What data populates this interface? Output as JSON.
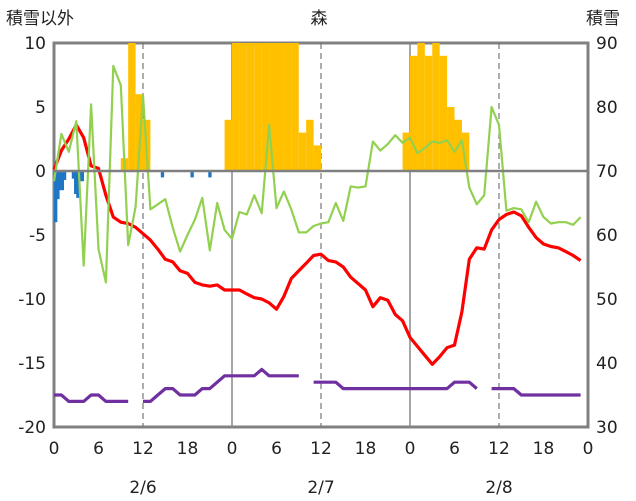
{
  "chart_data": {
    "type": "line",
    "title": "森",
    "left_axis_label": "積雪以外",
    "right_axis_label": "積雪",
    "y_left_range": [
      -20,
      10
    ],
    "y_left_ticks": [
      "10",
      "5",
      "0",
      "-5",
      "-10",
      "-15",
      "-20"
    ],
    "y_right_range": [
      30,
      90
    ],
    "y_right_ticks": [
      "90",
      "80",
      "70",
      "60",
      "50",
      "40",
      "30"
    ],
    "x_range_hours": [
      0,
      72
    ],
    "x_ticks": [
      "0",
      "6",
      "12",
      "18",
      "0",
      "6",
      "12",
      "18",
      "0",
      "6",
      "12",
      "18",
      "0"
    ],
    "date_labels": [
      "2/6",
      "2/7",
      "2/8"
    ],
    "grid": true,
    "colors": {
      "snowfall": "#FFC000",
      "precipitation": "#1F77C4",
      "temperature": "#FF0000",
      "humidity_like": "#92D050",
      "wind_like": "#7030A0",
      "grid": "#888888",
      "axis": "#808080"
    },
    "series": [
      {
        "axis": "left",
        "kind": "bar",
        "color": "#FFC000",
        "x": [
          9,
          10,
          11,
          12,
          23,
          24,
          25,
          26,
          27,
          28,
          29,
          30,
          31,
          32,
          33,
          34,
          35,
          36,
          37,
          38,
          39,
          40,
          41,
          47,
          48,
          49,
          50,
          51,
          52,
          53,
          54,
          55,
          56,
          57,
          58,
          59,
          60,
          61,
          62,
          63
        ],
        "values": [
          1,
          10,
          6,
          4,
          4,
          10,
          10,
          10,
          10,
          10,
          10,
          10,
          10,
          10,
          3,
          4,
          2,
          0,
          0,
          0,
          0,
          0,
          0,
          3,
          9,
          10,
          9,
          10,
          9,
          5,
          4,
          3,
          0,
          0,
          0,
          0,
          0,
          0,
          0,
          0
        ]
      },
      {
        "axis": "left",
        "kind": "bar",
        "color": "#1F77C4",
        "x": [
          0,
          0.3,
          0.6,
          0.9,
          1.2,
          2.4,
          2.7,
          3.0,
          3.3,
          3.6,
          14.4,
          18.4,
          20.8
        ],
        "values": [
          -4,
          -2.2,
          -1.5,
          -1.5,
          -0.7,
          -0.6,
          -1.8,
          -2.1,
          -0.8,
          -0.8,
          -0.5,
          -0.5,
          -0.5
        ]
      },
      {
        "axis": "left",
        "kind": "line",
        "color": "#FF0000",
        "x": [
          0,
          1,
          2,
          3,
          4,
          5,
          6,
          7,
          8,
          9,
          10,
          11,
          12,
          13,
          14,
          15,
          16,
          17,
          18,
          19,
          20,
          21,
          22,
          23,
          24,
          25,
          26,
          27,
          28,
          29,
          30,
          31,
          32,
          33,
          34,
          35,
          36,
          37,
          38,
          39,
          40,
          41,
          42,
          43,
          44,
          45,
          46,
          47,
          48,
          49,
          50,
          51,
          52,
          53,
          54,
          55,
          56,
          57,
          58,
          59,
          60,
          61,
          62,
          63,
          64,
          65,
          66,
          67,
          68,
          69,
          70,
          71
        ],
        "values": [
          0.1,
          1.6,
          2.5,
          3.6,
          2.6,
          0.4,
          0.2,
          -1.9,
          -3.6,
          -4,
          -4.1,
          -4.4,
          -4.9,
          -5.4,
          -6.1,
          -6.9,
          -7.1,
          -7.8,
          -8,
          -8.7,
          -8.9,
          -9,
          -8.9,
          -9.3,
          -9.3,
          -9.3,
          -9.6,
          -9.9,
          -10,
          -10.3,
          -10.8,
          -9.8,
          -8.4,
          -7.8,
          -7.2,
          -6.6,
          -6.5,
          -7,
          -7.1,
          -7.5,
          -8.3,
          -8.8,
          -9.3,
          -10.6,
          -9.9,
          -10.1,
          -11.2,
          -11.7,
          -13,
          -13.7,
          -14.4,
          -15.1,
          -14.5,
          -13.8,
          -13.6,
          -11,
          -6.9,
          -6,
          -6.1,
          -4.6,
          -3.8,
          -3.4,
          -3.2,
          -3.5,
          -4.4,
          -5.2,
          -5.7,
          -5.9,
          -6,
          -6.3,
          -6.6,
          -7
        ]
      },
      {
        "axis": "left",
        "kind": "line",
        "color": "#92D050",
        "x": [
          0,
          1,
          2,
          3,
          4,
          5,
          6,
          7,
          8,
          9,
          10,
          11,
          12,
          13,
          14,
          15,
          16,
          17,
          18,
          19,
          20,
          21,
          22,
          23,
          24,
          25,
          26,
          27,
          28,
          29,
          30,
          31,
          32,
          33,
          34,
          35,
          36,
          37,
          38,
          39,
          40,
          41,
          42,
          43,
          44,
          45,
          46,
          47,
          48,
          49,
          50,
          51,
          52,
          53,
          54,
          55,
          56,
          57,
          58,
          59,
          60,
          61,
          62,
          63,
          64,
          65,
          66,
          67,
          68,
          69,
          70,
          71
        ],
        "values": [
          -0.8,
          2.9,
          1.5,
          3.9,
          -7.4,
          5.2,
          -6.1,
          -8.7,
          8.2,
          6.7,
          -5.8,
          -2.8,
          5.9,
          -3,
          -2.6,
          -2.2,
          -4.4,
          -6.3,
          -5,
          -3.8,
          -2.1,
          -6.2,
          -2.5,
          -4.6,
          -5.3,
          -3.2,
          -3.4,
          -1.9,
          -3.3,
          3.6,
          -2.9,
          -1.6,
          -3,
          -4.8,
          -4.8,
          -4.3,
          -4.1,
          -4,
          -2.5,
          -3.9,
          -1.2,
          -1.3,
          -1.2,
          2.3,
          1.6,
          2.1,
          2.8,
          2.2,
          2.6,
          1.4,
          1.8,
          2.3,
          2.2,
          2.4,
          1.5,
          2.4,
          -1.3,
          -2.6,
          -1.9,
          5,
          3.6,
          -3.1,
          -2.9,
          -3,
          -4,
          -2.4,
          -3.6,
          -4.1,
          -4,
          -4,
          -4.2,
          -3.6
        ]
      },
      {
        "axis": "left",
        "kind": "line",
        "color": "#7030A0",
        "x": [
          0,
          1,
          2,
          3,
          4,
          5,
          6,
          7,
          8,
          9,
          10,
          11,
          12,
          13,
          14,
          15,
          16,
          17,
          18,
          19,
          20,
          21,
          22,
          23,
          24,
          25,
          26,
          27,
          28,
          29,
          30,
          31,
          32,
          33,
          34,
          35,
          36,
          37,
          38,
          39,
          40,
          41,
          42,
          43,
          44,
          45,
          46,
          47,
          48,
          49,
          50,
          51,
          52,
          53,
          54,
          55,
          56,
          57,
          58,
          59,
          60,
          61,
          62,
          63,
          64,
          65,
          66,
          67,
          68,
          69,
          70,
          71
        ],
        "values": [
          -17.5,
          -17.5,
          -18,
          -18,
          -18,
          -17.5,
          -17.5,
          -18,
          -18,
          -18,
          -18,
          null,
          -18,
          -18,
          -17.5,
          -17,
          -17,
          -17.5,
          -17.5,
          -17.5,
          -17,
          -17,
          -16.5,
          -16,
          -16,
          -16,
          -16,
          -16,
          -15.5,
          -16,
          -16,
          -16,
          -16,
          -16,
          null,
          -16.5,
          -16.5,
          -16.5,
          -16.5,
          -17,
          -17,
          -17,
          -17,
          -17,
          -17,
          -17,
          -17,
          -17,
          -17,
          -17,
          -17,
          -17,
          -17,
          -17,
          -16.5,
          -16.5,
          -16.5,
          -17,
          null,
          -17,
          -17,
          -17,
          -17,
          -17.5,
          -17.5,
          -17.5,
          -17.5,
          -17.5,
          -17.5,
          -17.5,
          -17.5,
          -17.5
        ]
      }
    ]
  }
}
